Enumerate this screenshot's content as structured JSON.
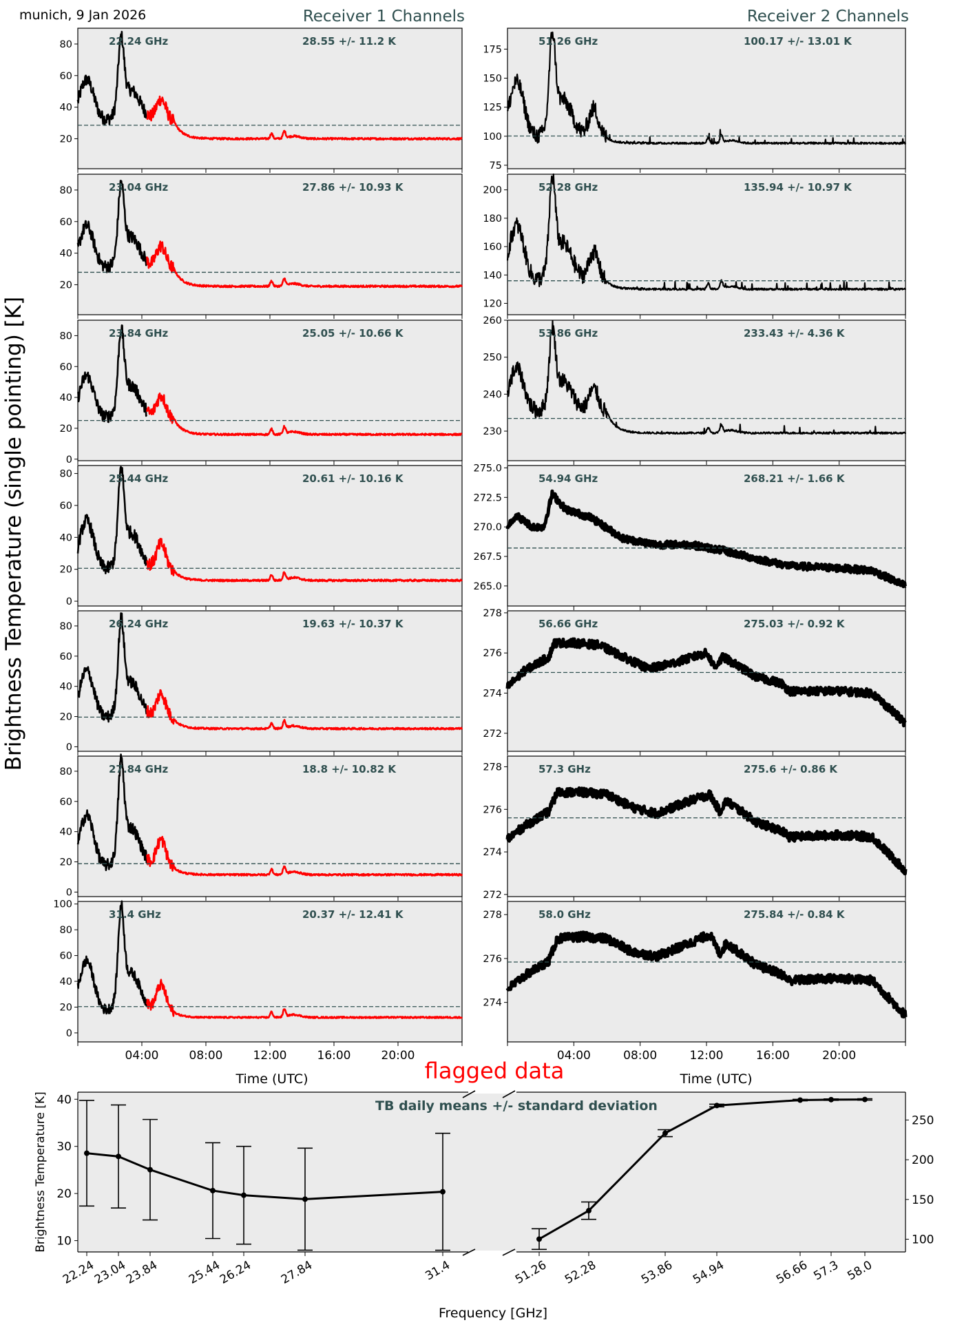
{
  "header": {
    "location_date": "munich, 9 Jan 2026",
    "receiver1_title": "Receiver 1 Channels",
    "receiver2_title": "Receiver 2 Channels",
    "ylabel": "Brightness Temperature (single pointing) [K]",
    "flag_label": "flagged data"
  },
  "colors": {
    "title": "#2f4f4f",
    "panel_bg": "#ebebeb",
    "good_data": "#000000",
    "flagged_data": "#ff0000",
    "mean_line": "#2f4f4f"
  },
  "chart_data": [
    {
      "type": "line",
      "title": "Receiver 1 Channels",
      "xlabel": "Time (UTC)",
      "x_tick_labels": [
        "04:00",
        "08:00",
        "12:00",
        "16:00",
        "20:00"
      ],
      "x_range_hours": [
        0,
        24
      ],
      "panels": [
        {
          "freq_label": "22.24 GHz",
          "stats_label": "28.55 +/- 11.2 K",
          "mean": 28.55,
          "std": 11.2,
          "ylim": [
            1,
            90
          ],
          "yticks": [
            20,
            40,
            60,
            80
          ],
          "peak1": 62,
          "peak2": 75,
          "base": 20,
          "min1": 31,
          "flagged_from_hour": 4.3
        },
        {
          "freq_label": "23.04 GHz",
          "stats_label": "27.86 +/- 10.93 K",
          "mean": 27.86,
          "std": 10.93,
          "ylim": [
            1,
            90
          ],
          "yticks": [
            20,
            40,
            60,
            80
          ],
          "peak1": 62,
          "peak2": 75,
          "base": 19,
          "min1": 30,
          "flagged_from_hour": 4.3
        },
        {
          "freq_label": "23.84 GHz",
          "stats_label": "25.05 +/- 10.66 K",
          "mean": 25.05,
          "std": 10.66,
          "ylim": [
            -1,
            90
          ],
          "yticks": [
            0,
            20,
            40,
            60,
            80
          ],
          "peak1": 59,
          "peak2": 74,
          "base": 16,
          "min1": 26,
          "flagged_from_hour": 4.3
        },
        {
          "freq_label": "25.44 GHz",
          "stats_label": "20.61 +/- 10.16 K",
          "mean": 20.61,
          "std": 10.16,
          "ylim": [
            -3,
            85
          ],
          "yticks": [
            0,
            20,
            40,
            60,
            80
          ],
          "peak1": 56,
          "peak2": 72,
          "base": 13,
          "min1": 19,
          "flagged_from_hour": 4.3
        },
        {
          "freq_label": "26.24 GHz",
          "stats_label": "19.63 +/- 10.37 K",
          "mean": 19.63,
          "std": 10.37,
          "ylim": [
            -3,
            90
          ],
          "yticks": [
            0,
            20,
            40,
            60,
            80
          ],
          "peak1": 56,
          "peak2": 73,
          "base": 12,
          "min1": 18,
          "flagged_from_hour": 4.3
        },
        {
          "freq_label": "27.84 GHz",
          "stats_label": "18.8 +/- 10.82 K",
          "mean": 18.8,
          "std": 10.82,
          "ylim": [
            -3,
            90
          ],
          "yticks": [
            0,
            20,
            40,
            60,
            80
          ],
          "peak1": 57,
          "peak2": 75,
          "base": 11.5,
          "min1": 16,
          "flagged_from_hour": 4.3
        },
        {
          "freq_label": "31.4 GHz",
          "stats_label": "20.37 +/- 12.41 K",
          "mean": 20.37,
          "std": 12.41,
          "ylim": [
            -7,
            102
          ],
          "yticks": [
            0,
            20,
            40,
            60,
            80,
            100
          ],
          "peak1": 63,
          "peak2": 84,
          "base": 12,
          "min1": 16,
          "flagged_from_hour": 4.3
        }
      ]
    },
    {
      "type": "line",
      "title": "Receiver 2 Channels",
      "xlabel": "Time (UTC)",
      "x_tick_labels": [
        "04:00",
        "08:00",
        "12:00",
        "16:00",
        "20:00"
      ],
      "x_range_hours": [
        0,
        24
      ],
      "panels": [
        {
          "freq_label": "51.26 GHz",
          "stats_label": "100.17 +/- 13.01 K",
          "mean": 100.17,
          "std": 13.01,
          "ylim": [
            72,
            193
          ],
          "yticks": [
            75,
            100,
            125,
            150,
            175
          ],
          "kind": "wet",
          "peak1": 155,
          "peak2": 173,
          "base": 94,
          "min1": 98
        },
        {
          "freq_label": "52.28 GHz",
          "stats_label": "135.94 +/- 10.97 K",
          "mean": 135.94,
          "std": 10.97,
          "ylim": [
            112,
            211
          ],
          "yticks": [
            120,
            140,
            160,
            180,
            200
          ],
          "kind": "wet",
          "peak1": 182,
          "peak2": 196,
          "base": 130,
          "min1": 135
        },
        {
          "freq_label": "53.86 GHz",
          "stats_label": "233.43 +/- 4.36 K",
          "mean": 233.43,
          "std": 4.36,
          "ylim": [
            222,
            260
          ],
          "yticks": [
            230,
            240,
            250,
            260
          ],
          "kind": "wet",
          "peak1": 249,
          "peak2": 254,
          "base": 229.5,
          "min1": 235
        },
        {
          "freq_label": "54.94 GHz",
          "stats_label": "268.21 +/- 1.66 K",
          "mean": 268.21,
          "std": 1.66,
          "ylim": [
            263.3,
            275.2
          ],
          "yticks": [
            265.0,
            267.5,
            270.0,
            272.5,
            275.0
          ],
          "tick_format": "1dp",
          "kind": "trend",
          "profile": [
            [
              0,
              270.0
            ],
            [
              0.5,
              271.0
            ],
            [
              1.5,
              270.0
            ],
            [
              2.2,
              270.0
            ],
            [
              2.7,
              272.8
            ],
            [
              3.5,
              271.5
            ],
            [
              5,
              270.8
            ],
            [
              7,
              269.0
            ],
            [
              9,
              268.5
            ],
            [
              11,
              268.5
            ],
            [
              13,
              268.0
            ],
            [
              15,
              267.3
            ],
            [
              17,
              266.7
            ],
            [
              20,
              266.5
            ],
            [
              22,
              266.3
            ],
            [
              24,
              265.0
            ]
          ],
          "noise": 0.3
        },
        {
          "freq_label": "56.66 GHz",
          "stats_label": "275.03 +/- 0.92 K",
          "mean": 275.03,
          "std": 0.92,
          "ylim": [
            271.1,
            278.1
          ],
          "yticks": [
            272,
            274,
            276,
            278
          ],
          "kind": "trend",
          "profile": [
            [
              0,
              274.3
            ],
            [
              1,
              275.1
            ],
            [
              2.5,
              275.8
            ],
            [
              2.8,
              276.5
            ],
            [
              4,
              276.5
            ],
            [
              5.5,
              276.4
            ],
            [
              7,
              275.8
            ],
            [
              8.5,
              275.2
            ],
            [
              10,
              275.5
            ],
            [
              12,
              276.0
            ],
            [
              12.5,
              275.3
            ],
            [
              13,
              275.8
            ],
            [
              15,
              274.8
            ],
            [
              16.5,
              274.5
            ],
            [
              17,
              274.1
            ],
            [
              20,
              274.1
            ],
            [
              22,
              274.0
            ],
            [
              24,
              272.5
            ]
          ],
          "noise": 0.2
        },
        {
          "freq_label": "57.3 GHz",
          "stats_label": "275.6 +/- 0.86 K",
          "mean": 275.6,
          "std": 0.86,
          "ylim": [
            271.9,
            278.5
          ],
          "yticks": [
            272,
            274,
            276,
            278
          ],
          "kind": "trend",
          "profile": [
            [
              0,
              274.6
            ],
            [
              1,
              275.2
            ],
            [
              2.5,
              275.9
            ],
            [
              3,
              276.8
            ],
            [
              4.5,
              276.8
            ],
            [
              6,
              276.7
            ],
            [
              7.5,
              276.1
            ],
            [
              9,
              275.8
            ],
            [
              11,
              276.4
            ],
            [
              12.2,
              276.7
            ],
            [
              12.8,
              275.9
            ],
            [
              13.2,
              276.4
            ],
            [
              15,
              275.4
            ],
            [
              16.5,
              275.0
            ],
            [
              17,
              274.7
            ],
            [
              20,
              274.8
            ],
            [
              22,
              274.7
            ],
            [
              24,
              273.1
            ]
          ],
          "noise": 0.2
        },
        {
          "freq_label": "58.0 GHz",
          "stats_label": "275.84 +/- 0.84 K",
          "mean": 275.84,
          "std": 0.84,
          "ylim": [
            272.2,
            278.6
          ],
          "yticks": [
            274,
            276,
            278
          ],
          "kind": "trend",
          "profile": [
            [
              0,
              274.6
            ],
            [
              1,
              275.2
            ],
            [
              2.5,
              275.9
            ],
            [
              3,
              276.9
            ],
            [
              4.5,
              277.0
            ],
            [
              6,
              276.9
            ],
            [
              7.5,
              276.3
            ],
            [
              9,
              276.1
            ],
            [
              11,
              276.7
            ],
            [
              12.2,
              277.1
            ],
            [
              12.8,
              276.2
            ],
            [
              13.2,
              276.7
            ],
            [
              15,
              275.7
            ],
            [
              16.5,
              275.3
            ],
            [
              17,
              275.0
            ],
            [
              20,
              275.1
            ],
            [
              22,
              275.0
            ],
            [
              24,
              273.4
            ]
          ],
          "noise": 0.2
        }
      ]
    },
    {
      "type": "line",
      "title": "TB daily means +/- standard deviation",
      "xlabel": "Frequency [GHz]",
      "ylabel": "Brightness Temperature [K]",
      "left": {
        "x": [
          22.24,
          23.04,
          23.84,
          25.44,
          26.24,
          27.84,
          31.4
        ],
        "x_tick_labels": [
          "22.24",
          "23.04",
          "23.84",
          "25.44",
          "26.24",
          "27.84",
          "31.4"
        ],
        "y": [
          28.55,
          27.86,
          25.05,
          20.61,
          19.63,
          18.8,
          20.37
        ],
        "err": [
          11.2,
          10.93,
          10.66,
          10.16,
          10.37,
          10.82,
          12.41
        ],
        "ylim": [
          7.6,
          41.5
        ],
        "yticks": [
          10,
          20,
          30,
          40
        ]
      },
      "right": {
        "x": [
          51.26,
          52.28,
          53.86,
          54.94,
          56.66,
          57.3,
          58.0
        ],
        "x_tick_labels": [
          "51.26",
          "52.28",
          "53.86",
          "54.94",
          "56.66",
          "57.3",
          "58.0"
        ],
        "y": [
          100.17,
          135.94,
          233.43,
          268.21,
          275.03,
          275.6,
          275.84
        ],
        "err": [
          13.01,
          10.97,
          4.36,
          1.66,
          0.92,
          0.86,
          0.84
        ],
        "ylim": [
          84,
          285
        ],
        "yticks": [
          100,
          150,
          200,
          250
        ]
      }
    }
  ]
}
